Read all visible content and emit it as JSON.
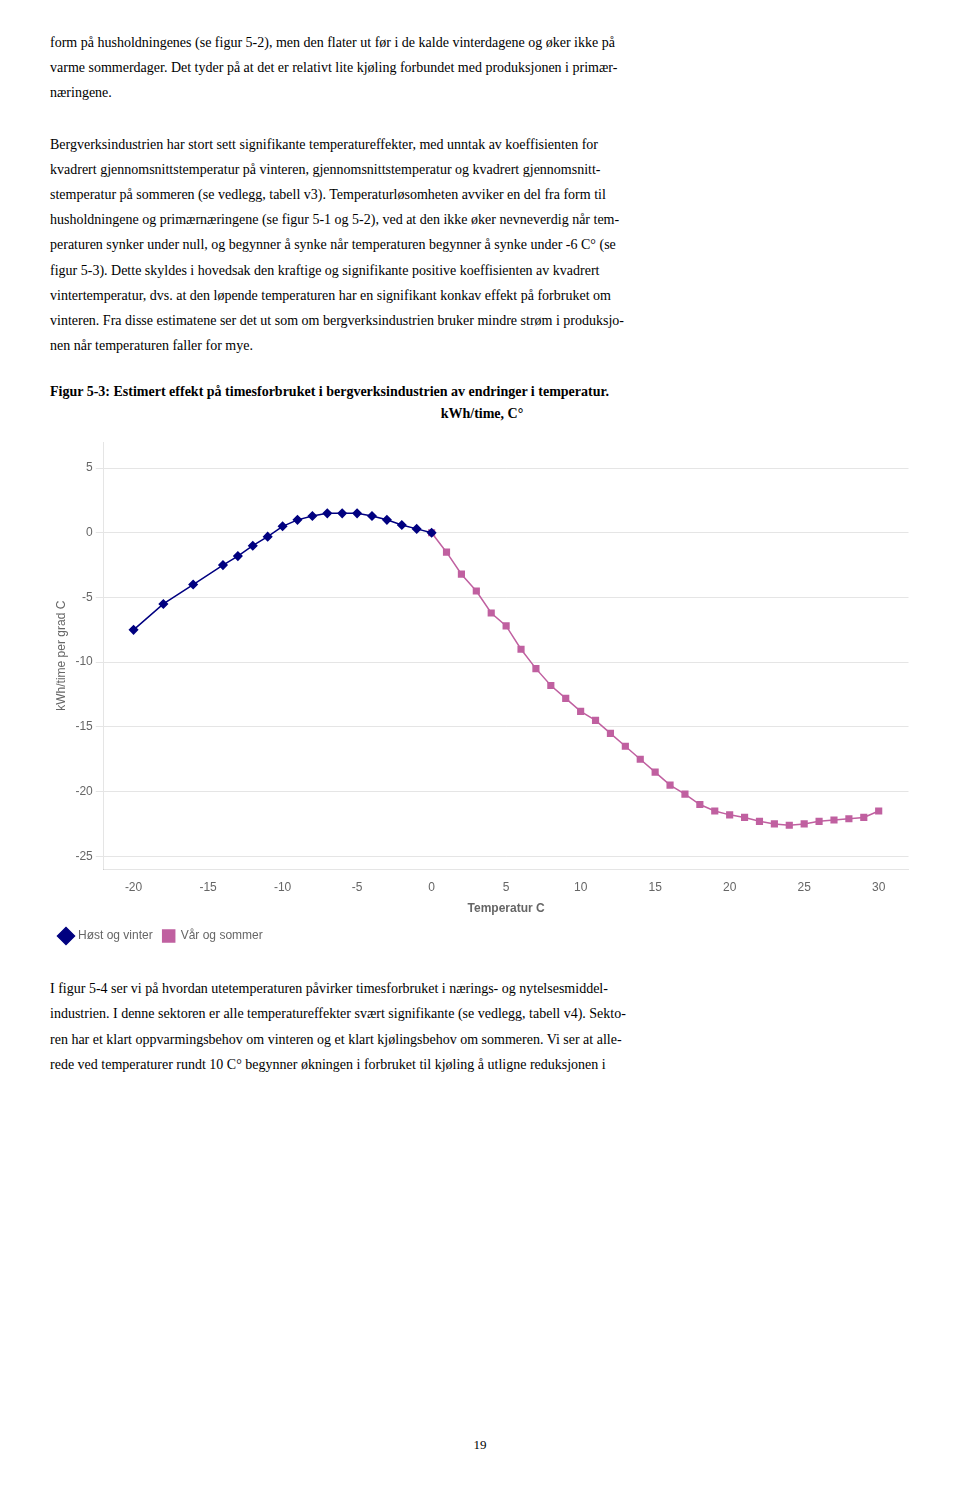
{
  "para1": "form på husholdningenes (se figur 5-2), men den flater ut før i de kalde vinterdagene og øker ikke på\nvarme sommerdager. Det tyder på at det er relativt lite kjøling forbundet med produksjonen i primær-\nnæringene.",
  "para2": "Bergverksindustrien har stort sett signifikante temperatureffekter, med unntak av koeffisienten for\nkvadrert gjennomsnittstemperatur på vinteren, gjennomsnittstemperatur og kvadrert gjennomsnitt-\nstemperatur på sommeren (se vedlegg, tabell v3). Temperaturløsomheten avviker en del fra form til\nhusholdningene og primærnæringene (se figur 5-1 og 5-2), ved at den ikke øker nevneverdig når tem-\nperaturen synker under null, og begynner å synke når temperaturen begynner å synke under -6 C° (se\nfigur 5-3). Dette skyldes i hovedsak den kraftige og signifikante positive koeffisienten av kvadrert\nvintertemperatur, dvs. at den løpende temperaturen har en signifikant konkav effekt på forbruket om\nvinteren. Fra disse estimatene ser det ut som om bergverksindustrien bruker mindre strøm i produksjo-\nnen når temperaturen faller for mye.",
  "para3": "I figur 5-4 ser vi på hvordan utetemperaturen påvirker timesforbruket i nærings- og nytelsesmiddel-\nindustrien. I denne sektoren er alle temperatureffekter svært signifikante (se vedlegg, tabell v4). Sekto-\nren har et klart oppvarmingsbehov om vinteren og et klart kjølingsbehov om sommeren. Vi ser at alle-\nrede ved temperaturer rundt 10 C° begynner økningen i forbruket til kjøling å utligne reduksjonen i",
  "page_number": "19",
  "chart_data": {
    "type": "line",
    "title": "Figur 5-3: Estimert effekt på timesforbruket i bergverksindustrien av endringer i temperatur.",
    "subtitle": "kWh/time, C°",
    "xlabel": "Temperatur C",
    "ylabel": "kWh/time per grad C",
    "xlim": [
      -22,
      32
    ],
    "ylim": [
      -26,
      7
    ],
    "xticks": [
      -20,
      -15,
      -10,
      -5,
      0,
      5,
      10,
      15,
      20,
      25,
      30
    ],
    "yticks": [
      -25,
      -20,
      -15,
      -10,
      -5,
      0,
      5
    ],
    "grid": "y",
    "legend": "lower left",
    "series": [
      {
        "name": "Høst og vinter",
        "color": "#000080",
        "marker": "diamond",
        "x": [
          -20,
          -18,
          -16,
          -14,
          -13,
          -12,
          -11,
          -10,
          -9,
          -8,
          -7,
          -6,
          -5,
          -4,
          -3,
          -2,
          -1,
          0
        ],
        "values": [
          -7.5,
          -5.5,
          -4.0,
          -2.5,
          -1.8,
          -1.0,
          -0.3,
          0.5,
          1.0,
          1.3,
          1.5,
          1.5,
          1.5,
          1.3,
          1.0,
          0.6,
          0.3,
          0.0
        ]
      },
      {
        "name": "Vår og sommer",
        "color": "#C060A0",
        "marker": "square",
        "x": [
          0,
          1,
          2,
          3,
          4,
          5,
          6,
          7,
          8,
          9,
          10,
          11,
          12,
          13,
          14,
          15,
          16,
          17,
          18,
          19,
          20,
          21,
          22,
          23,
          24,
          25,
          26,
          27,
          28,
          29,
          30
        ],
        "values": [
          0.0,
          -1.5,
          -3.2,
          -4.5,
          -6.2,
          -7.2,
          -9.0,
          -10.5,
          -11.8,
          -12.8,
          -13.8,
          -14.5,
          -15.5,
          -16.5,
          -17.5,
          -18.5,
          -19.5,
          -20.2,
          -21.0,
          -21.5,
          -21.8,
          -22.0,
          -22.3,
          -22.5,
          -22.6,
          -22.5,
          -22.3,
          -22.2,
          -22.1,
          -22.0,
          -21.5
        ]
      }
    ]
  }
}
